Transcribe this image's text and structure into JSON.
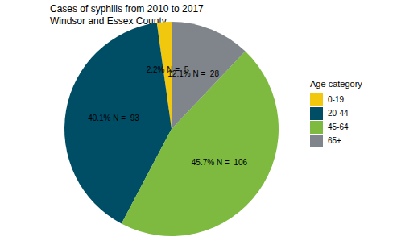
{
  "chart_data": {
    "type": "pie",
    "title": "Cases of syphilis from 2010 to 2017",
    "subtitle": "Windsor and Essex County",
    "legend_title": "Age category",
    "categories": [
      "0-19",
      "20-44",
      "45-64",
      "65+"
    ],
    "values": [
      2.2,
      40.1,
      45.7,
      12.1
    ],
    "value_labels": [
      "2.2% N =  5",
      "40.1% N =  93",
      "45.7% N =  106",
      "12.1% N =  28"
    ],
    "colors": [
      "#F2C80F",
      "#004D66",
      "#7DBA3F",
      "#7F858A"
    ],
    "data_labels": true,
    "legend": "right"
  }
}
